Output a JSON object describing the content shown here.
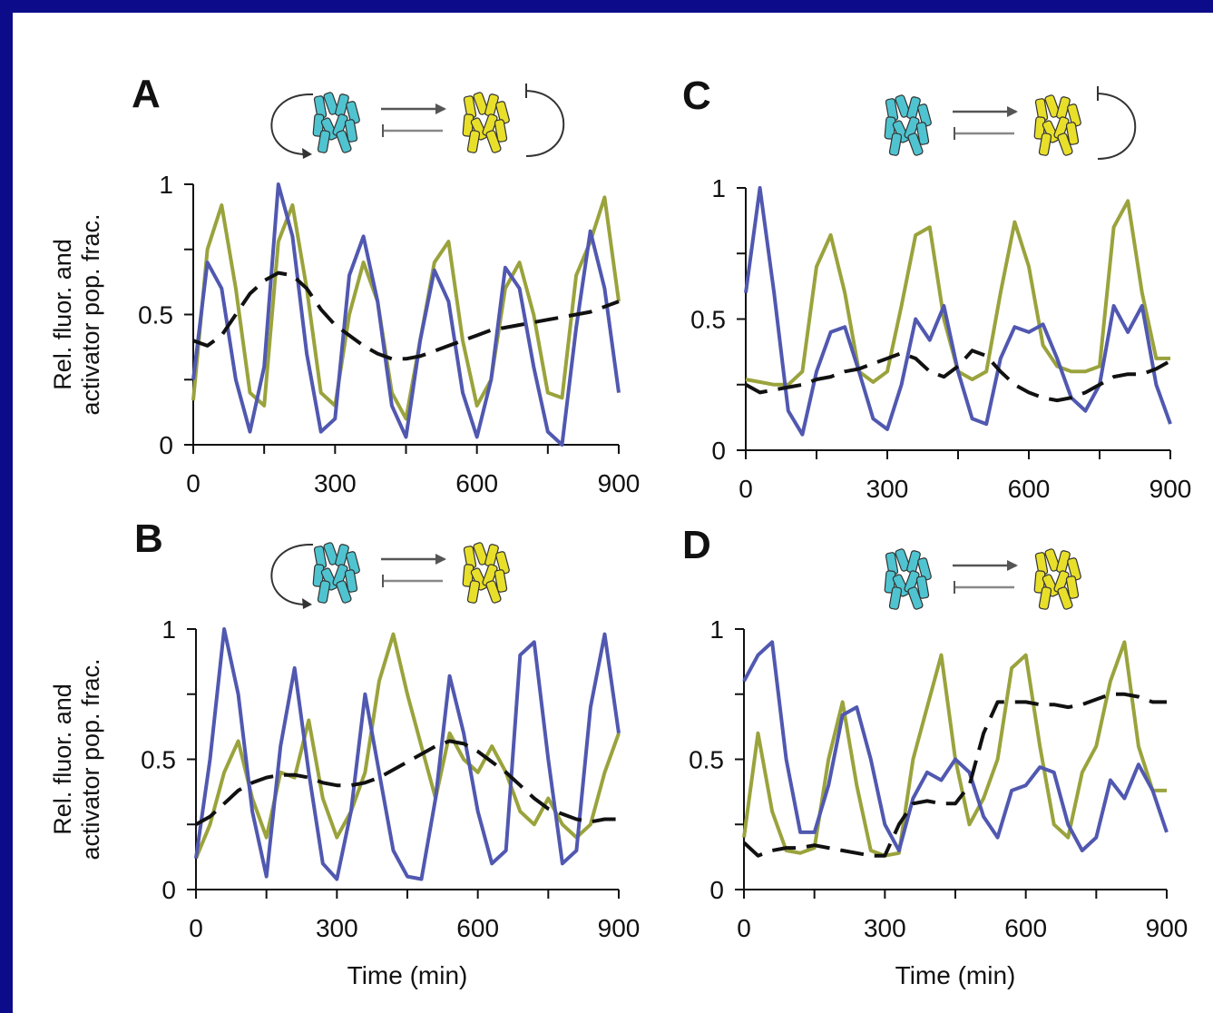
{
  "chart_data": [
    {
      "type": "line",
      "panel": "A",
      "ylabel": [
        "Rel. fluor. and",
        "activator pop. frac."
      ],
      "x": [
        0,
        30,
        60,
        90,
        120,
        150,
        180,
        210,
        240,
        270,
        300,
        330,
        360,
        390,
        420,
        450,
        480,
        510,
        540,
        570,
        600,
        630,
        660,
        690,
        720,
        750,
        780,
        810,
        840,
        870,
        900
      ],
      "series": [
        {
          "color": "#9aa33c",
          "dashed": false,
          "values": [
            0.17,
            0.75,
            0.92,
            0.6,
            0.2,
            0.15,
            0.78,
            0.92,
            0.6,
            0.2,
            0.15,
            0.5,
            0.7,
            0.55,
            0.2,
            0.1,
            0.4,
            0.7,
            0.78,
            0.4,
            0.15,
            0.25,
            0.6,
            0.7,
            0.5,
            0.2,
            0.18,
            0.65,
            0.78,
            0.95,
            0.55
          ]
        },
        {
          "color": "#5058b0",
          "dashed": false,
          "values": [
            0.25,
            0.7,
            0.6,
            0.25,
            0.05,
            0.3,
            1.0,
            0.8,
            0.35,
            0.05,
            0.1,
            0.65,
            0.8,
            0.55,
            0.15,
            0.03,
            0.4,
            0.67,
            0.55,
            0.2,
            0.03,
            0.25,
            0.68,
            0.6,
            0.3,
            0.05,
            0.0,
            0.45,
            0.82,
            0.6,
            0.2
          ]
        },
        {
          "color": "#111111",
          "dashed": true,
          "values": [
            0.4,
            0.38,
            0.42,
            0.5,
            0.58,
            0.63,
            0.66,
            0.65,
            0.6,
            0.52,
            0.46,
            0.42,
            0.38,
            0.35,
            0.33,
            0.33,
            0.34,
            0.36,
            0.38,
            0.4,
            0.42,
            0.44,
            0.45,
            0.46,
            0.47,
            0.48,
            0.49,
            0.5,
            0.51,
            0.53,
            0.55
          ]
        }
      ],
      "xlim": [
        0,
        900
      ],
      "ylim": [
        0,
        1
      ],
      "xticks": [
        0,
        300,
        600,
        900
      ],
      "yticks": [
        0,
        0.5,
        1
      ],
      "xminorticks": [
        150,
        450,
        750
      ],
      "yminorticks": [
        0.25,
        0.75
      ]
    },
    {
      "type": "line",
      "panel": "C",
      "x": [
        0,
        30,
        60,
        90,
        120,
        150,
        180,
        210,
        240,
        270,
        300,
        330,
        360,
        390,
        420,
        450,
        480,
        510,
        540,
        570,
        600,
        630,
        660,
        690,
        720,
        750,
        780,
        810,
        840,
        870,
        900
      ],
      "series": [
        {
          "color": "#9aa33c",
          "dashed": false,
          "values": [
            0.27,
            0.26,
            0.25,
            0.25,
            0.3,
            0.7,
            0.82,
            0.6,
            0.3,
            0.26,
            0.3,
            0.55,
            0.82,
            0.85,
            0.5,
            0.3,
            0.27,
            0.3,
            0.6,
            0.87,
            0.7,
            0.4,
            0.32,
            0.3,
            0.3,
            0.32,
            0.85,
            0.95,
            0.6,
            0.35,
            0.35
          ]
        },
        {
          "color": "#5058b0",
          "dashed": false,
          "values": [
            0.6,
            1.0,
            0.6,
            0.15,
            0.06,
            0.3,
            0.45,
            0.47,
            0.3,
            0.12,
            0.08,
            0.25,
            0.5,
            0.42,
            0.55,
            0.3,
            0.12,
            0.1,
            0.35,
            0.47,
            0.45,
            0.48,
            0.35,
            0.2,
            0.15,
            0.25,
            0.55,
            0.45,
            0.55,
            0.25,
            0.1
          ]
        },
        {
          "color": "#111111",
          "dashed": true,
          "values": [
            0.25,
            0.22,
            0.23,
            0.24,
            0.25,
            0.27,
            0.28,
            0.3,
            0.31,
            0.33,
            0.35,
            0.37,
            0.35,
            0.3,
            0.28,
            0.32,
            0.38,
            0.36,
            0.3,
            0.25,
            0.22,
            0.2,
            0.19,
            0.2,
            0.22,
            0.25,
            0.28,
            0.29,
            0.29,
            0.31,
            0.34
          ]
        }
      ],
      "xlim": [
        0,
        900
      ],
      "ylim": [
        0,
        1
      ],
      "xticks": [
        0,
        300,
        600,
        900
      ],
      "yticks": [
        0,
        0.5,
        1
      ],
      "xminorticks": [
        150,
        450,
        750
      ],
      "yminorticks": [
        0.25,
        0.75
      ]
    },
    {
      "type": "line",
      "panel": "B",
      "ylabel": [
        "Rel. fluor. and",
        "activator pop. frac."
      ],
      "xlabel": "Time (min)",
      "x": [
        0,
        30,
        60,
        90,
        120,
        150,
        180,
        210,
        240,
        270,
        300,
        330,
        360,
        390,
        420,
        450,
        480,
        510,
        540,
        570,
        600,
        630,
        660,
        690,
        720,
        750,
        780,
        810,
        840,
        870,
        900
      ],
      "series": [
        {
          "color": "#9aa33c",
          "dashed": false,
          "values": [
            0.12,
            0.25,
            0.45,
            0.57,
            0.35,
            0.2,
            0.45,
            0.43,
            0.65,
            0.35,
            0.2,
            0.3,
            0.45,
            0.8,
            0.98,
            0.75,
            0.55,
            0.35,
            0.6,
            0.5,
            0.45,
            0.55,
            0.45,
            0.3,
            0.25,
            0.35,
            0.25,
            0.2,
            0.25,
            0.45,
            0.6
          ]
        },
        {
          "color": "#5058b0",
          "dashed": false,
          "values": [
            0.12,
            0.5,
            1.0,
            0.75,
            0.3,
            0.05,
            0.55,
            0.85,
            0.45,
            0.1,
            0.04,
            0.3,
            0.75,
            0.45,
            0.15,
            0.05,
            0.04,
            0.35,
            0.82,
            0.6,
            0.3,
            0.1,
            0.15,
            0.9,
            0.95,
            0.5,
            0.1,
            0.15,
            0.7,
            0.98,
            0.6
          ]
        },
        {
          "color": "#111111",
          "dashed": true,
          "values": [
            0.25,
            0.28,
            0.33,
            0.38,
            0.41,
            0.43,
            0.44,
            0.44,
            0.43,
            0.41,
            0.4,
            0.4,
            0.41,
            0.43,
            0.46,
            0.49,
            0.52,
            0.55,
            0.57,
            0.56,
            0.53,
            0.49,
            0.45,
            0.4,
            0.35,
            0.31,
            0.29,
            0.27,
            0.26,
            0.27,
            0.27
          ]
        }
      ],
      "xlim": [
        0,
        900
      ],
      "ylim": [
        0,
        1
      ],
      "xticks": [
        0,
        300,
        600,
        900
      ],
      "yticks": [
        0,
        0.5,
        1
      ],
      "xminorticks": [
        150,
        450,
        750
      ],
      "yminorticks": [
        0.25,
        0.75
      ]
    },
    {
      "type": "line",
      "panel": "D",
      "xlabel": "Time (min)",
      "x": [
        0,
        30,
        60,
        90,
        120,
        150,
        180,
        210,
        240,
        270,
        300,
        330,
        360,
        390,
        420,
        450,
        480,
        510,
        540,
        570,
        600,
        630,
        660,
        690,
        720,
        750,
        780,
        810,
        840,
        870,
        900
      ],
      "series": [
        {
          "color": "#9aa33c",
          "dashed": false,
          "values": [
            0.2,
            0.6,
            0.3,
            0.15,
            0.14,
            0.16,
            0.5,
            0.72,
            0.4,
            0.15,
            0.13,
            0.14,
            0.5,
            0.7,
            0.9,
            0.5,
            0.25,
            0.35,
            0.5,
            0.85,
            0.9,
            0.55,
            0.25,
            0.2,
            0.45,
            0.55,
            0.8,
            0.95,
            0.55,
            0.38,
            0.38
          ]
        },
        {
          "color": "#5058b0",
          "dashed": false,
          "values": [
            0.8,
            0.9,
            0.95,
            0.5,
            0.22,
            0.22,
            0.4,
            0.67,
            0.7,
            0.5,
            0.25,
            0.15,
            0.35,
            0.45,
            0.42,
            0.5,
            0.45,
            0.28,
            0.2,
            0.38,
            0.4,
            0.47,
            0.45,
            0.25,
            0.15,
            0.2,
            0.42,
            0.35,
            0.48,
            0.38,
            0.22
          ]
        },
        {
          "color": "#111111",
          "dashed": true,
          "values": [
            0.18,
            0.13,
            0.15,
            0.16,
            0.16,
            0.17,
            0.16,
            0.15,
            0.14,
            0.13,
            0.13,
            0.25,
            0.33,
            0.34,
            0.33,
            0.33,
            0.4,
            0.6,
            0.72,
            0.72,
            0.72,
            0.71,
            0.71,
            0.7,
            0.71,
            0.73,
            0.75,
            0.75,
            0.74,
            0.72,
            0.72
          ]
        }
      ],
      "xlim": [
        0,
        900
      ],
      "ylim": [
        0,
        1
      ],
      "xticks": [
        0,
        300,
        600,
        900
      ],
      "yticks": [
        0,
        0.5,
        1
      ],
      "xminorticks": [
        150,
        450,
        750
      ],
      "yminorticks": [
        0.25,
        0.75
      ]
    }
  ]
}
